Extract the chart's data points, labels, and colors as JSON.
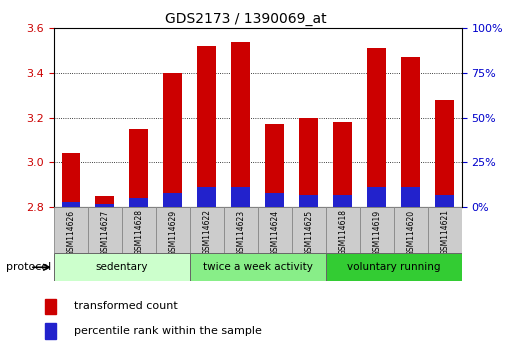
{
  "title": "GDS2173 / 1390069_at",
  "samples": [
    "GSM114626",
    "GSM114627",
    "GSM114628",
    "GSM114629",
    "GSM114622",
    "GSM114623",
    "GSM114624",
    "GSM114625",
    "GSM114618",
    "GSM114619",
    "GSM114620",
    "GSM114621"
  ],
  "transformed_count": [
    3.04,
    2.85,
    3.15,
    3.4,
    3.52,
    3.54,
    3.17,
    3.2,
    3.18,
    3.51,
    3.47,
    3.28
  ],
  "percentile_rank_pct": [
    3,
    2,
    5,
    8,
    11,
    11,
    8,
    7,
    7,
    11,
    11,
    7
  ],
  "y_min": 2.8,
  "y_max": 3.6,
  "y_ticks": [
    2.8,
    3.0,
    3.2,
    3.4,
    3.6
  ],
  "right_y_ticks": [
    0,
    25,
    50,
    75,
    100
  ],
  "right_y_tick_labels": [
    "0%",
    "25%",
    "50%",
    "75%",
    "100%"
  ],
  "bar_color_red": "#cc0000",
  "bar_color_blue": "#2222cc",
  "groups": [
    {
      "label": "sedentary",
      "start": 0,
      "end": 4,
      "color": "#ccffcc"
    },
    {
      "label": "twice a week activity",
      "start": 4,
      "end": 8,
      "color": "#88ee88"
    },
    {
      "label": "voluntary running",
      "start": 8,
      "end": 12,
      "color": "#33cc33"
    }
  ],
  "protocol_label": "protocol",
  "legend_items": [
    {
      "label": "transformed count",
      "color": "#cc0000"
    },
    {
      "label": "percentile rank within the sample",
      "color": "#2222cc"
    }
  ],
  "left_axis_color": "#cc0000",
  "right_axis_color": "#0000cc",
  "bar_width": 0.55,
  "base_value": 2.8,
  "grid_lines": [
    3.0,
    3.2,
    3.4
  ]
}
